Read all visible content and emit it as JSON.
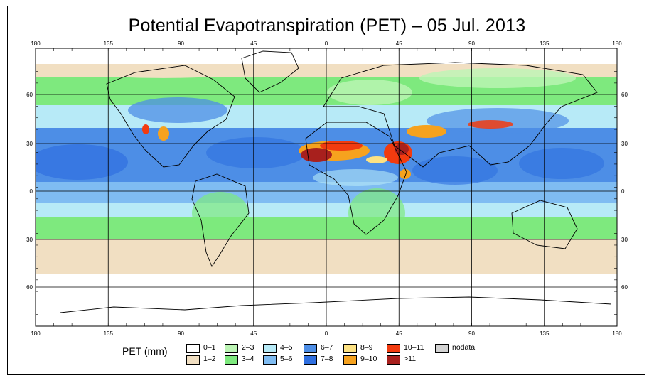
{
  "title": "Potential Evapotranspiration (PET) – 05 Jul. 2013",
  "map": {
    "lon_ticks": [
      "180",
      "135",
      "90",
      "45",
      "0",
      "45",
      "90",
      "135",
      "180"
    ],
    "lat_ticks": [
      "60",
      "30",
      "0",
      "30",
      "60"
    ],
    "colors": {
      "c0": "#ffffff",
      "c1": "#f1dfc2",
      "c2": "#bdf5b5",
      "c3": "#7ee97e",
      "c4": "#b7eaf7",
      "c5": "#7fbcf2",
      "c6": "#4d8ee6",
      "c7": "#2f6fe0",
      "c8": "#fde283",
      "c9": "#f6a21e",
      "c10": "#f23b0f",
      "c11": "#a8201d",
      "nodata": "#d3d3d3"
    }
  },
  "legend": {
    "label": "PET (mm)",
    "items": [
      {
        "label": "0–1",
        "color": "#ffffff"
      },
      {
        "label": "1–2",
        "color": "#f1dfc2"
      },
      {
        "label": "2–3",
        "color": "#bdf5b5"
      },
      {
        "label": "3–4",
        "color": "#7ee97e"
      },
      {
        "label": "4–5",
        "color": "#b7eaf7"
      },
      {
        "label": "5–6",
        "color": "#7fbcf2"
      },
      {
        "label": "6–7",
        "color": "#4d8ee6"
      },
      {
        "label": "7–8",
        "color": "#2f6fe0"
      },
      {
        "label": "8–9",
        "color": "#fde283"
      },
      {
        "label": "9–10",
        "color": "#f6a21e"
      },
      {
        "label": "10–11",
        "color": "#f23b0f"
      },
      {
        "label": ">11",
        "color": "#a8201d"
      },
      {
        "label": "nodata",
        "color": "#d3d3d3"
      }
    ]
  }
}
